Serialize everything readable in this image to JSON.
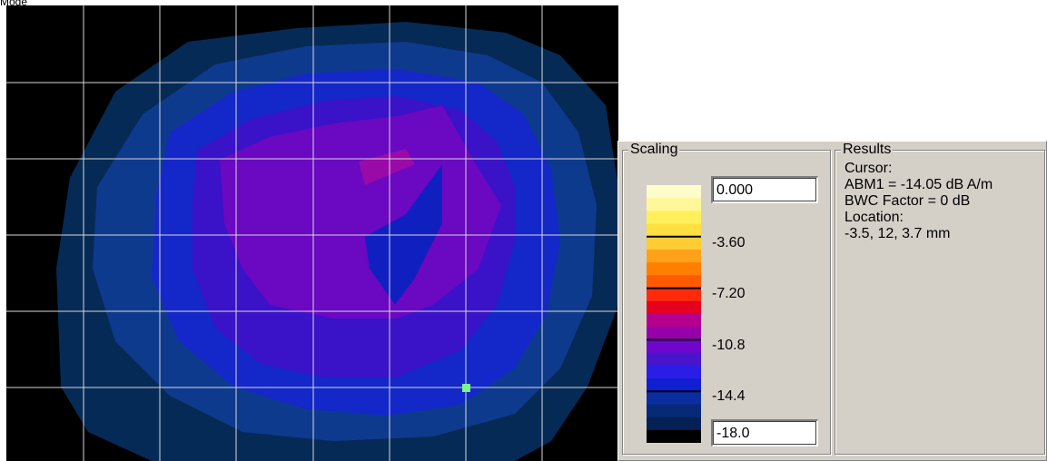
{
  "window": {
    "corner_label": "Mode"
  },
  "scaling": {
    "title": "Scaling",
    "max_value": "0.000",
    "min_value": "-18.0",
    "tick_labels": [
      "-3.60",
      "-7.20",
      "-10.8",
      "-14.4"
    ]
  },
  "results": {
    "title": "Results",
    "lines": [
      "Cursor:",
      "ABM1 = -14.05 dB A/m",
      "BWC Factor = 0 dB",
      "Location:",
      "-3.5, 12, 3.7 mm"
    ]
  },
  "colors": {
    "background": "#000000",
    "grid": "#d8d8d8",
    "cursor_marker": "#7cf58a",
    "colorbar_top_to_bottom": [
      "#fffccc",
      "#fff79a",
      "#ffef5a",
      "#ffe040",
      "#ffcc33",
      "#ffa21a",
      "#ff7f00",
      "#ff5a00",
      "#ff2a0a",
      "#e60020",
      "#b4008c",
      "#9600aa",
      "#6e06cc",
      "#4814cc",
      "#2a1ee6",
      "#1020d0",
      "#0a2ea0",
      "#062a78",
      "#042055",
      "#000000"
    ]
  }
}
